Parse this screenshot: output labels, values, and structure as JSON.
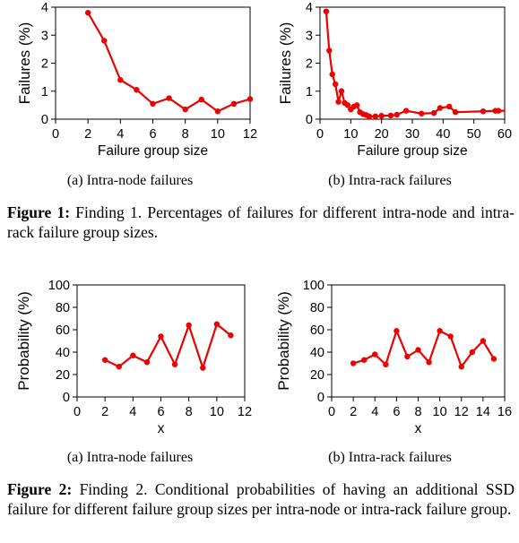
{
  "figures": [
    {
      "label": "Figure 1:",
      "text": "Finding 1. Percentages of failures for different intra-node and intra-rack failure group sizes."
    },
    {
      "label": "Figure 2:",
      "text": "Finding 2. Conditional probabilities of having an additional SSD failure for different failure group sizes per intra-node or intra-rack failure group."
    }
  ],
  "subcaptions": {
    "fig1a": "(a) Intra-node failures",
    "fig1b": "(b) Intra-rack failures",
    "fig2a": "(a) Intra-node failures",
    "fig2b": "(b) Intra-rack failures"
  },
  "style": {
    "series_color": "#ee0000"
  },
  "chart_data": [
    {
      "id": "fig1a",
      "type": "line",
      "xlabel": "Failure group size",
      "ylabel": "Failures (%)",
      "xlim": [
        0,
        12
      ],
      "ylim": [
        0,
        4
      ],
      "xticks": [
        0,
        2,
        4,
        6,
        8,
        10,
        12
      ],
      "yticks": [
        0,
        1,
        2,
        3,
        4
      ],
      "x": [
        2,
        3,
        4,
        5,
        6,
        7,
        8,
        9,
        10,
        11,
        12
      ],
      "y": [
        3.8,
        2.8,
        1.4,
        1.05,
        0.55,
        0.75,
        0.35,
        0.7,
        0.28,
        0.55,
        0.72
      ],
      "grid": false
    },
    {
      "id": "fig1b",
      "type": "line",
      "xlabel": "Failure group size",
      "ylabel": "Failures (%)",
      "xlim": [
        0,
        60
      ],
      "ylim": [
        0,
        4
      ],
      "xticks": [
        0,
        10,
        20,
        30,
        40,
        50,
        60
      ],
      "yticks": [
        0,
        1,
        2,
        3,
        4
      ],
      "x": [
        2,
        3,
        4,
        5,
        6,
        7,
        8,
        9,
        10,
        11,
        12,
        13,
        14,
        15,
        16,
        18,
        20,
        23,
        25,
        28,
        33,
        37,
        39,
        42,
        44,
        53,
        57,
        58,
        62
      ],
      "y": [
        3.85,
        2.45,
        1.6,
        1.25,
        0.62,
        1.0,
        0.58,
        0.5,
        0.35,
        0.45,
        0.5,
        0.25,
        0.18,
        0.15,
        0.1,
        0.1,
        0.12,
        0.13,
        0.16,
        0.3,
        0.2,
        0.22,
        0.4,
        0.45,
        0.25,
        0.28,
        0.3,
        0.3,
        0.3
      ],
      "grid": false
    },
    {
      "id": "fig2a",
      "type": "line",
      "xlabel": "x",
      "ylabel": "Probability (%)",
      "xlim": [
        0,
        12
      ],
      "ylim": [
        0,
        100
      ],
      "xticks": [
        0,
        2,
        4,
        6,
        8,
        10,
        12
      ],
      "yticks": [
        0,
        20,
        40,
        60,
        80,
        100
      ],
      "x": [
        2,
        3,
        4,
        5,
        6,
        7,
        8,
        9,
        10,
        11
      ],
      "y": [
        33,
        27,
        37,
        31,
        54,
        29,
        64,
        26,
        65,
        55
      ],
      "grid": false
    },
    {
      "id": "fig2b",
      "type": "line",
      "xlabel": "x",
      "ylabel": "Probability (%)",
      "xlim": [
        0,
        16
      ],
      "ylim": [
        0,
        100
      ],
      "xticks": [
        0,
        2,
        4,
        6,
        8,
        10,
        12,
        14,
        16
      ],
      "yticks": [
        0,
        20,
        40,
        60,
        80,
        100
      ],
      "x": [
        2,
        3,
        4,
        5,
        6,
        7,
        8,
        9,
        10,
        11,
        12,
        13,
        14,
        15
      ],
      "y": [
        30,
        33,
        38,
        29,
        59,
        36,
        42,
        31,
        59,
        54,
        27,
        40,
        50,
        34
      ],
      "grid": false
    }
  ]
}
